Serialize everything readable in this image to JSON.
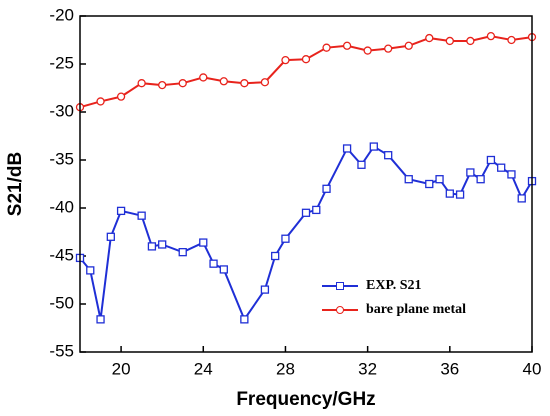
{
  "chart_data": {
    "type": "line",
    "x_label": "Frequency/GHz",
    "y_label": "S21/dB",
    "xlim": [
      18,
      40
    ],
    "ylim": [
      -55,
      -20
    ],
    "xticks": [
      20,
      24,
      28,
      32,
      36,
      40
    ],
    "yticks": [
      -55,
      -50,
      -45,
      -40,
      -35,
      -30,
      -25,
      -20
    ],
    "legend": "lower right",
    "series": [
      {
        "name": "EXP. S21",
        "color": "#1f2fd6",
        "x": [
          18,
          18.5,
          19,
          19.5,
          20,
          21,
          21.5,
          22,
          23,
          24,
          24.5,
          25,
          26,
          27,
          27.5,
          28,
          29,
          29.5,
          30,
          31,
          31.7,
          32.3,
          33,
          34,
          35,
          35.5,
          36,
          36.5,
          37,
          37.5,
          38,
          38.5,
          39,
          39.5,
          40
        ],
        "values": [
          -45.2,
          -46.5,
          -51.6,
          -43,
          -40.3,
          -40.8,
          -44,
          -43.8,
          -44.6,
          -43.6,
          -45.8,
          -46.4,
          -51.6,
          -48.5,
          -45,
          -43.2,
          -40.5,
          -40.2,
          -38,
          -33.8,
          -35.5,
          -33.6,
          -34.5,
          -37,
          -37.5,
          -37,
          -38.5,
          -38.6,
          -36.3,
          -37,
          -35,
          -35.8,
          -36.5,
          -39,
          -37.2
        ]
      },
      {
        "name": "bare plane metal",
        "color": "#e8231c",
        "x": [
          18,
          19,
          20,
          21,
          22,
          23,
          24,
          25,
          26,
          27,
          28,
          29,
          30,
          31,
          32,
          33,
          34,
          35,
          36,
          37,
          38,
          39,
          40
        ],
        "values": [
          -29.5,
          -28.9,
          -28.4,
          -27.0,
          -27.2,
          -27.0,
          -26.4,
          -26.8,
          -27.0,
          -26.9,
          -24.6,
          -24.5,
          -23.3,
          -23.1,
          -23.6,
          -23.4,
          -23.1,
          -22.3,
          -22.6,
          -22.6,
          -22.1,
          -22.5,
          -22.2
        ]
      }
    ]
  }
}
